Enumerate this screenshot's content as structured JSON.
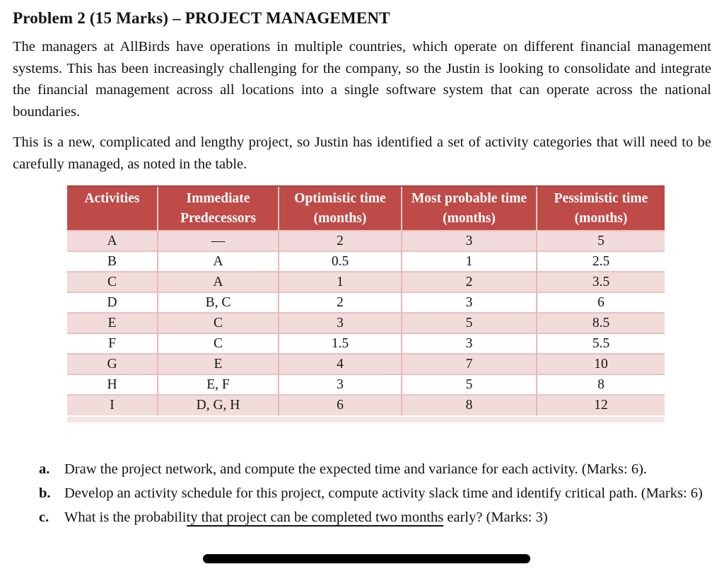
{
  "title": "Problem 2 (15 Marks) – PROJECT MANAGEMENT",
  "paragraphs": [
    "The managers at AllBirds have operations in multiple countries, which operate on different financial management systems. This has been increasingly challenging for the company, so the Justin is looking to consolidate and integrate the financial management across all locations into a single software system that can operate across the national boundaries.",
    "This is a new, complicated and lengthy project, so Justin has identified a set of activity categories that will need to be carefully managed, as noted in the table."
  ],
  "table": {
    "headers": [
      "Activities",
      "Immediate Predecessors",
      "Optimistic time (months)",
      "Most probable time (months)",
      "Pessimistic time (months)"
    ],
    "rows": [
      [
        "A",
        "—",
        "2",
        "3",
        "5"
      ],
      [
        "B",
        "A",
        "0.5",
        "1",
        "2.5"
      ],
      [
        "C",
        "A",
        "1",
        "2",
        "3.5"
      ],
      [
        "D",
        "B, C",
        "2",
        "3",
        "6"
      ],
      [
        "E",
        "C",
        "3",
        "5",
        "8.5"
      ],
      [
        "F",
        "C",
        "1.5",
        "3",
        "5.5"
      ],
      [
        "G",
        "E",
        "4",
        "7",
        "10"
      ],
      [
        "H",
        "E, F",
        "3",
        "5",
        "8"
      ],
      [
        "I",
        "D, G, H",
        "6",
        "8",
        "12"
      ]
    ],
    "colors": {
      "header_bg": "#BE4B48",
      "header_text": "#FFFFFF",
      "row_alt_bg": "#F2DCDB",
      "row_bg": "#FFFFFF",
      "border": "#E5B8B7"
    }
  },
  "questions": [
    {
      "marker": "a.",
      "text": "Draw the project network, and compute the expected time and variance for each activity. (Marks: 6)."
    },
    {
      "marker": "b.",
      "text": "Develop an activity schedule for this project, compute activity slack time and identify critical path. (Marks: 6)"
    },
    {
      "marker": "c.",
      "pre": "What is the probabili",
      "underlined": "ty that project can be completed two months",
      "post": " early? (Marks: 3)"
    }
  ]
}
